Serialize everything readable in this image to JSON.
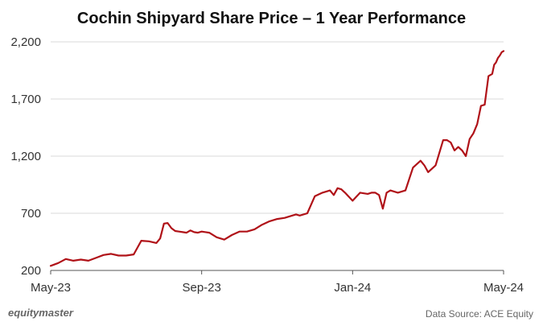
{
  "colors": {
    "line": "#b01218",
    "grid": "#d9d9d9",
    "axis": "#555555",
    "text": "#333333"
  },
  "footer": {
    "brand": "equitymaster",
    "source": "Data Source: ACE Equity"
  },
  "chart_data": {
    "type": "line",
    "title": "Cochin Shipyard Share Price – 1 Year Performance",
    "xlabel": "",
    "ylabel": "",
    "ylim": [
      200,
      2200
    ],
    "yticks": [
      200,
      700,
      1200,
      1700,
      2200
    ],
    "ytick_labels": [
      "200",
      "700",
      "1,200",
      "1,700",
      "2,200"
    ],
    "xlim": [
      0,
      12
    ],
    "xticks": [
      0,
      4,
      8,
      12
    ],
    "xtick_labels": [
      "May-23",
      "Sep-23",
      "Jan-24",
      "May-24"
    ],
    "grid": true,
    "series": [
      {
        "name": "Cochin Shipyard",
        "x": [
          0,
          0.2,
          0.4,
          0.6,
          0.8,
          1.0,
          1.2,
          1.4,
          1.6,
          1.8,
          2.0,
          2.2,
          2.4,
          2.6,
          2.8,
          2.9,
          3.0,
          3.1,
          3.2,
          3.3,
          3.4,
          3.5,
          3.6,
          3.7,
          3.8,
          3.9,
          4.0,
          4.2,
          4.4,
          4.6,
          4.8,
          5.0,
          5.2,
          5.4,
          5.6,
          5.8,
          6.0,
          6.2,
          6.4,
          6.5,
          6.6,
          6.8,
          7.0,
          7.2,
          7.4,
          7.5,
          7.6,
          7.7,
          7.8,
          8.0,
          8.2,
          8.4,
          8.5,
          8.6,
          8.7,
          8.8,
          8.9,
          9.0,
          9.2,
          9.4,
          9.6,
          9.8,
          9.9,
          10.0,
          10.2,
          10.4,
          10.5,
          10.6,
          10.7,
          10.8,
          10.9,
          11.0,
          11.1,
          11.2,
          11.3,
          11.4,
          11.5,
          11.6,
          11.7,
          11.75,
          11.8,
          11.85,
          11.9,
          11.95,
          12.0
        ],
        "y": [
          240,
          265,
          300,
          285,
          295,
          285,
          310,
          335,
          345,
          330,
          330,
          340,
          460,
          455,
          440,
          480,
          610,
          615,
          570,
          545,
          540,
          535,
          530,
          550,
          535,
          530,
          540,
          530,
          490,
          470,
          510,
          540,
          540,
          560,
          600,
          630,
          650,
          660,
          680,
          690,
          680,
          700,
          850,
          880,
          900,
          860,
          920,
          910,
          880,
          810,
          880,
          870,
          880,
          880,
          860,
          740,
          880,
          900,
          880,
          900,
          1100,
          1160,
          1120,
          1060,
          1120,
          1340,
          1340,
          1320,
          1250,
          1280,
          1250,
          1200,
          1350,
          1400,
          1480,
          1640,
          1650,
          1900,
          1920,
          2000,
          2020,
          2060,
          2080,
          2110,
          2120
        ]
      }
    ]
  }
}
